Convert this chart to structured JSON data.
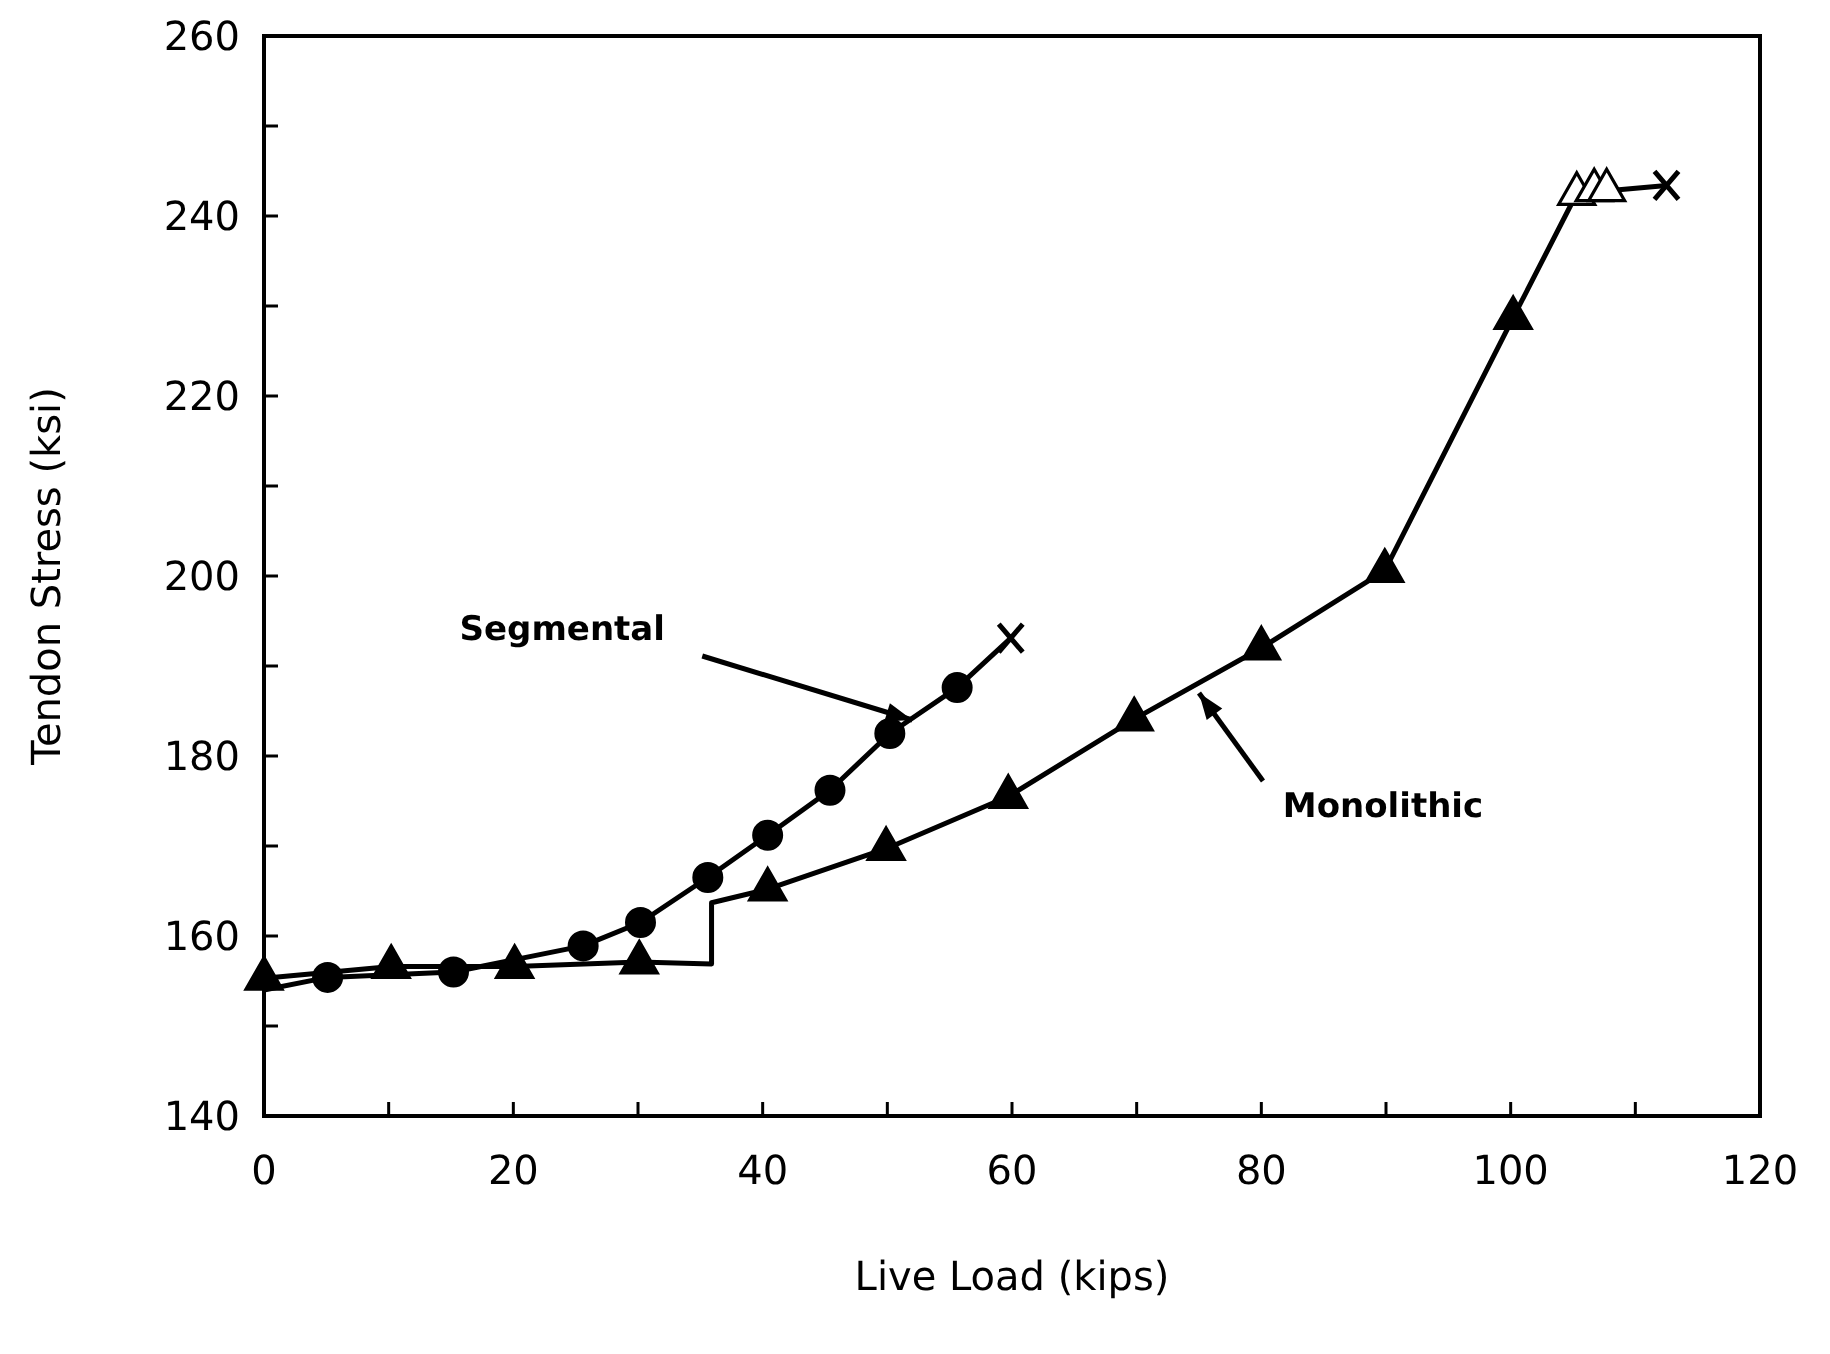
{
  "chart_data": {
    "type": "line",
    "xlabel": "Live Load (kips)",
    "ylabel": "Tendon Stress (ksi)",
    "xlim": [
      0,
      120
    ],
    "ylim": [
      140,
      260
    ],
    "xticks": [
      0,
      {
        "value": 10,
        "label": null
      },
      20,
      {
        "value": 30,
        "label": null
      },
      40,
      {
        "value": 50,
        "label": null
      },
      60,
      {
        "value": 70,
        "label": null
      },
      80,
      {
        "value": 90,
        "label": null
      },
      100,
      {
        "value": 110,
        "label": null
      },
      120
    ],
    "yticks": [
      140,
      {
        "value": 150,
        "label": null
      },
      160,
      {
        "value": 170,
        "label": null
      },
      180,
      {
        "value": 190,
        "label": null
      },
      200,
      {
        "value": 210,
        "label": null
      },
      220,
      {
        "value": 230,
        "label": null
      },
      240,
      {
        "value": 250,
        "label": null
      },
      260
    ],
    "grid": false,
    "series": [
      {
        "color": "#000000",
        "marker": "none",
        "x": [
          0,
          5.1,
          15.2,
          25.6,
          30.2,
          35.6,
          40.4,
          45.4,
          50.2,
          55.6,
          59.9
        ],
        "values": [
          154.0,
          155.4,
          156.0,
          158.9,
          161.5,
          166.5,
          171.2,
          176.2,
          182.5,
          187.6,
          193.1
        ]
      },
      {
        "color": "#000000",
        "marker": "none",
        "x": [
          0,
          10.2,
          20.1,
          30.1,
          35.9,
          35.9,
          40.4,
          49.9,
          59.7,
          69.8,
          80.0,
          89.9,
          100.2,
          105.3,
          112.5
        ],
        "values": [
          155.3,
          156.6,
          156.6,
          157.1,
          156.9,
          163.7,
          165.2,
          169.7,
          175.5,
          184.1,
          192.0,
          200.6,
          228.7,
          242.5,
          243.4
        ]
      },
      {
        "type": "scatter",
        "color": "#000000",
        "marker": "circle",
        "x": [
          5.1,
          15.2,
          25.6,
          30.2,
          35.6,
          40.4,
          45.4,
          50.2,
          55.6
        ],
        "values": [
          155.4,
          156.0,
          158.9,
          161.5,
          166.5,
          171.2,
          176.2,
          182.5,
          187.6
        ]
      },
      {
        "type": "scatter",
        "color": "#000000",
        "marker": "triangle",
        "x": [
          0,
          10.2,
          20.1,
          30.1,
          40.4,
          49.9,
          59.7,
          69.8,
          80.0,
          89.9,
          100.2
        ],
        "values": [
          155.3,
          156.6,
          156.6,
          157.1,
          165.2,
          169.7,
          175.5,
          184.1,
          192.0,
          200.6,
          228.7
        ]
      },
      {
        "type": "scatter",
        "color": "#ffffff",
        "marker": "triangle",
        "x": [
          105.3,
          106.7,
          107.7
        ],
        "values": [
          242.5,
          242.9,
          242.9
        ]
      },
      {
        "type": "scatter",
        "color": "#000000",
        "marker": "cross",
        "x": [
          59.9,
          112.5
        ],
        "values": [
          193.1,
          243.4
        ]
      }
    ],
    "annotations": [
      {
        "text": "Segmental",
        "x": 52,
        "y": 184
      },
      {
        "text": "Monolithic",
        "x": 75,
        "y": 187
      }
    ]
  }
}
